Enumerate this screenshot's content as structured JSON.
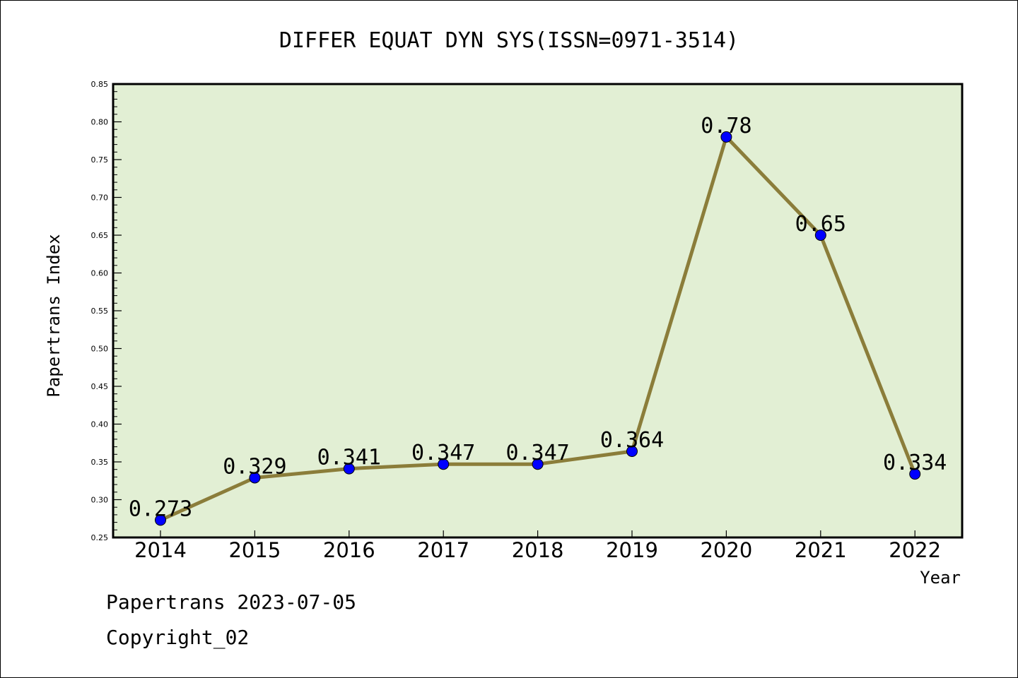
{
  "chart_data": {
    "type": "line",
    "title": "DIFFER EQUAT DYN SYS(ISSN=0971-3514)",
    "xlabel": "Year",
    "ylabel": "Papertrans Index",
    "categories": [
      "2014",
      "2015",
      "2016",
      "2017",
      "2018",
      "2019",
      "2020",
      "2021",
      "2022"
    ],
    "values": [
      0.273,
      0.329,
      0.341,
      0.347,
      0.347,
      0.364,
      0.78,
      0.65,
      0.334
    ],
    "data_labels": [
      "0.273",
      "0.329",
      "0.341",
      "0.347",
      "0.347",
      "0.364",
      "0.78",
      "0.65",
      "0.334"
    ],
    "ylim": [
      0.25,
      0.85
    ],
    "yticks": [
      "0.25",
      "0.30",
      "0.35",
      "0.40",
      "0.45",
      "0.50",
      "0.55",
      "0.60",
      "0.65",
      "0.70",
      "0.75",
      "0.80",
      "0.85"
    ],
    "grid": false,
    "colors": {
      "plot_background": "#e2efd4",
      "line": "#8b7d3a",
      "marker": "#0000ff"
    }
  },
  "footer": {
    "date_text": "Papertrans 2023-07-05",
    "copyright_text": "Copyright_02"
  }
}
